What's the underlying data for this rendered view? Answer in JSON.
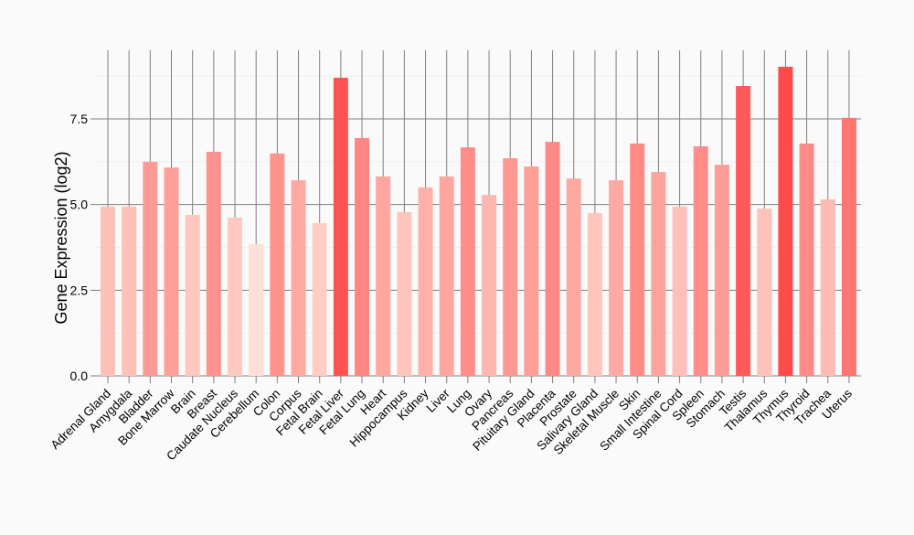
{
  "chart_data": {
    "type": "bar",
    "title": "",
    "xlabel": "",
    "ylabel": "Gene Expression (log2)",
    "ylim": [
      0,
      9.5
    ],
    "yticks": [
      "0.0",
      "2.5",
      "5.0",
      "7.5"
    ],
    "ytick_values": [
      0,
      2.5,
      5.0,
      7.5
    ],
    "grid": true,
    "legend": "none",
    "colors": {
      "low": "#FEE0D6",
      "high": "#FF4A4A",
      "grid": "#7f7f7f",
      "minor_grid": "#f0f0f0"
    },
    "categories": [
      "Adrenal Gland",
      "Amygdala",
      "Bladder",
      "Bone Marrow",
      "Brain",
      "Breast",
      "Caudate Nucleus",
      "Cerebellum",
      "Colon",
      "Corpus",
      "Fetal Brain",
      "Fetal Liver",
      "Fetal Lung",
      "Heart",
      "Hippocampus",
      "Kidney",
      "Liver",
      "Lung",
      "Ovary",
      "Pancreas",
      "Pituitary Gland",
      "Placenta",
      "Prostate",
      "Salivary Gland",
      "Skeletal Muscle",
      "Skin",
      "Small Intestine",
      "Spinal Cord",
      "Spleen",
      "Stomach",
      "Testis",
      "Thalamus",
      "Thymus",
      "Thyroid",
      "Trachea",
      "Uterus"
    ],
    "values": [
      4.94,
      4.94,
      6.25,
      6.08,
      4.7,
      6.54,
      4.62,
      3.84,
      6.49,
      5.71,
      4.46,
      8.7,
      6.94,
      5.82,
      4.78,
      5.5,
      5.82,
      6.67,
      5.28,
      6.35,
      6.11,
      6.83,
      5.76,
      4.75,
      5.71,
      6.78,
      5.95,
      4.94,
      6.7,
      6.16,
      8.46,
      4.88,
      9.02,
      6.78,
      5.15,
      7.53
    ]
  }
}
